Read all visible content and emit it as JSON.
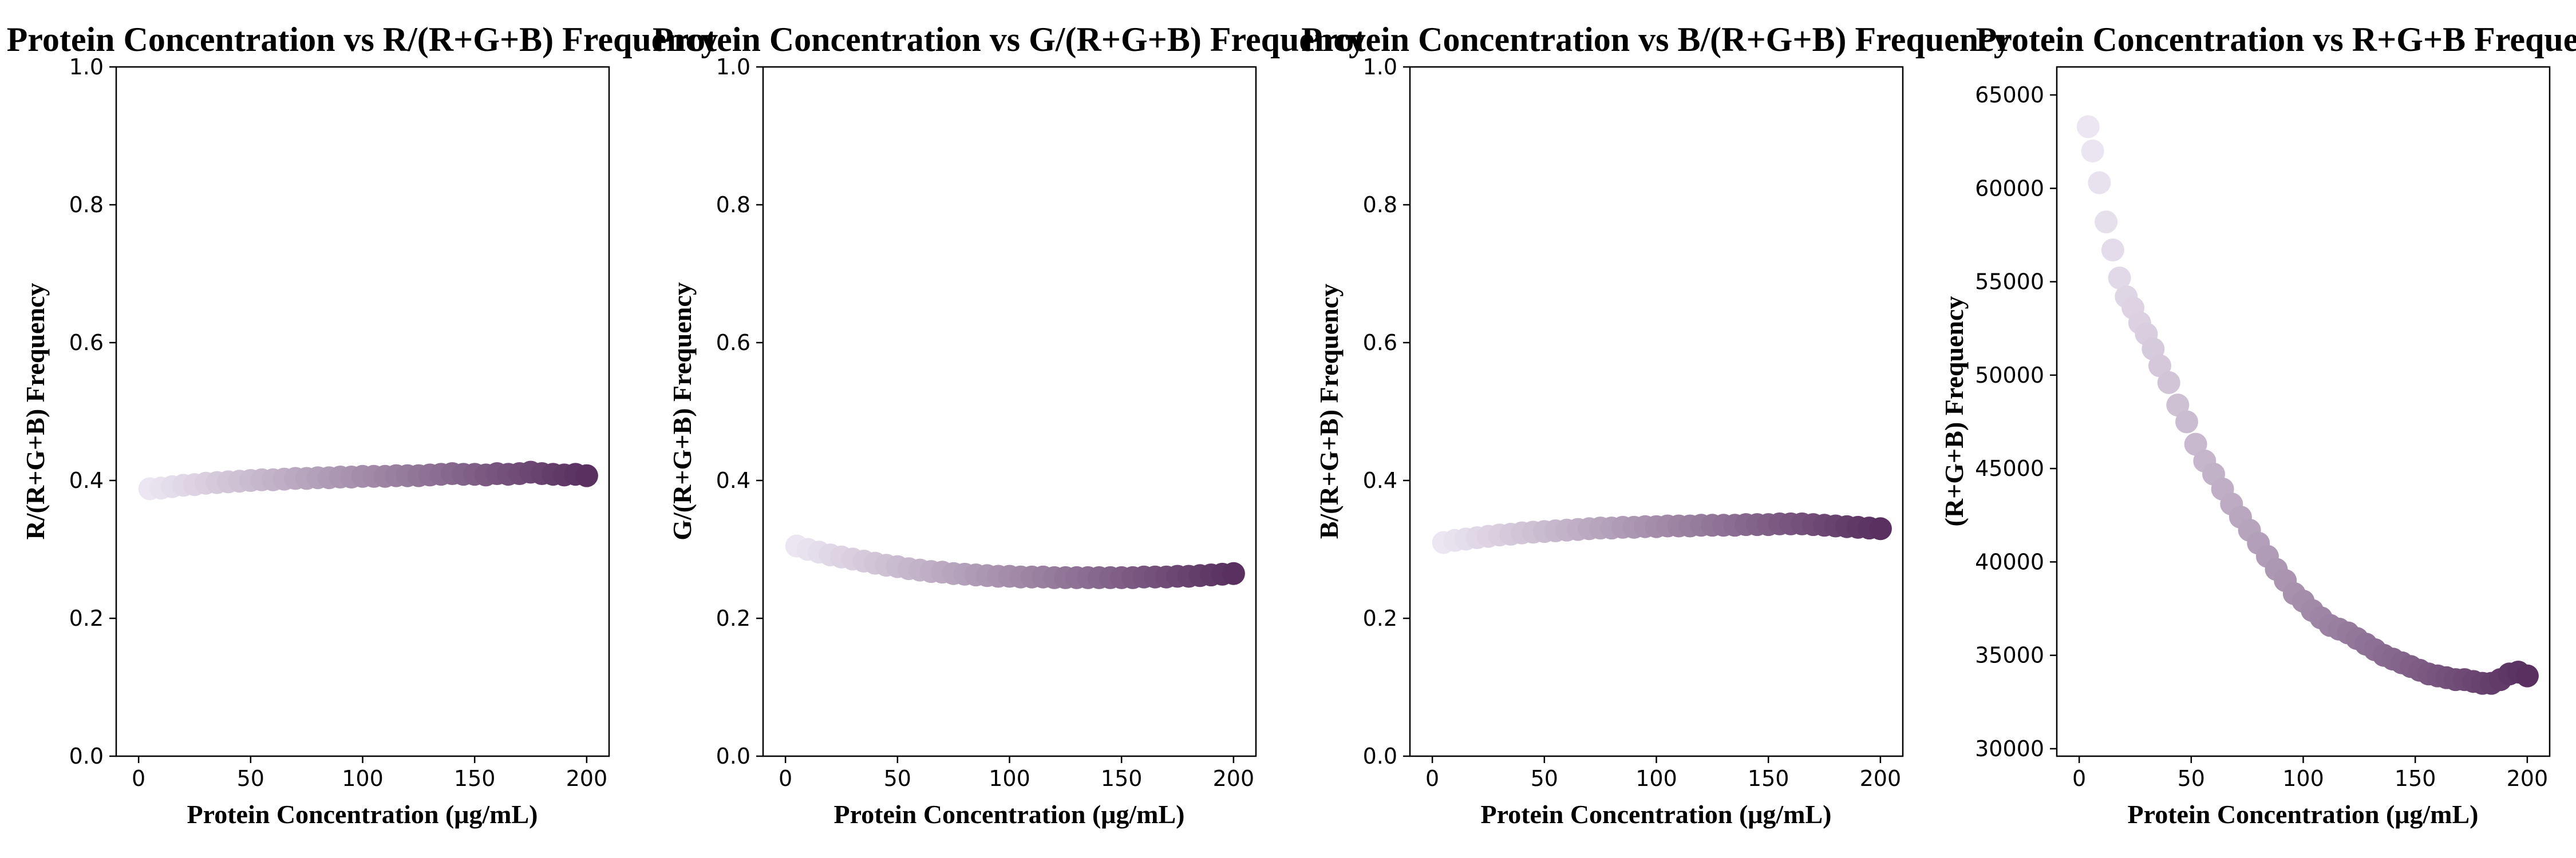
{
  "figure": {
    "colors": {
      "start": "#ece6f2",
      "end": "#593060"
    }
  },
  "chart_data": [
    {
      "type": "scatter",
      "title": "Protein Concentration vs R/(R+G+B) Frequency",
      "xlabel": "Protein Concentration (μg/mL)",
      "ylabel": "R/(R+G+B) Frequency",
      "xlim": [
        -10,
        210
      ],
      "ylim": [
        0.0,
        1.0
      ],
      "xticks": [
        0,
        50,
        100,
        150,
        200
      ],
      "xtick_labels": [
        "0",
        "50",
        "100",
        "150",
        "200"
      ],
      "yticks": [
        0.0,
        0.2,
        0.4,
        0.6,
        0.8,
        1.0
      ],
      "ytick_labels": [
        "0.0",
        "0.2",
        "0.4",
        "0.6",
        "0.8",
        "1.0"
      ],
      "x": [
        5,
        10,
        15,
        20,
        25,
        30,
        35,
        40,
        45,
        50,
        55,
        60,
        65,
        70,
        75,
        80,
        85,
        90,
        95,
        100,
        105,
        110,
        115,
        120,
        125,
        130,
        135,
        140,
        145,
        150,
        155,
        160,
        165,
        170,
        175,
        180,
        185,
        190,
        195,
        200
      ],
      "y": [
        0.388,
        0.389,
        0.391,
        0.393,
        0.394,
        0.396,
        0.397,
        0.398,
        0.399,
        0.4,
        0.401,
        0.401,
        0.402,
        0.403,
        0.403,
        0.404,
        0.404,
        0.405,
        0.405,
        0.406,
        0.406,
        0.406,
        0.407,
        0.407,
        0.407,
        0.408,
        0.409,
        0.41,
        0.409,
        0.409,
        0.408,
        0.41,
        0.409,
        0.41,
        0.412,
        0.41,
        0.409,
        0.408,
        0.409,
        0.407
      ]
    },
    {
      "type": "scatter",
      "title": "Protein Concentration vs G/(R+G+B) Frequency",
      "xlabel": "Protein Concentration (μg/mL)",
      "ylabel": "G/(R+G+B) Frequency",
      "xlim": [
        -10,
        210
      ],
      "ylim": [
        0.0,
        1.0
      ],
      "xticks": [
        0,
        50,
        100,
        150,
        200
      ],
      "xtick_labels": [
        "0",
        "50",
        "100",
        "150",
        "200"
      ],
      "yticks": [
        0.0,
        0.2,
        0.4,
        0.6,
        0.8,
        1.0
      ],
      "ytick_labels": [
        "0.0",
        "0.2",
        "0.4",
        "0.6",
        "0.8",
        "1.0"
      ],
      "x": [
        5,
        10,
        15,
        20,
        25,
        30,
        35,
        40,
        45,
        50,
        55,
        60,
        65,
        70,
        75,
        80,
        85,
        90,
        95,
        100,
        105,
        110,
        115,
        120,
        125,
        130,
        135,
        140,
        145,
        150,
        155,
        160,
        165,
        170,
        175,
        180,
        185,
        190,
        195,
        200
      ],
      "y": [
        0.305,
        0.3,
        0.296,
        0.292,
        0.289,
        0.286,
        0.283,
        0.28,
        0.277,
        0.275,
        0.272,
        0.27,
        0.268,
        0.267,
        0.265,
        0.264,
        0.263,
        0.262,
        0.261,
        0.261,
        0.26,
        0.26,
        0.26,
        0.259,
        0.259,
        0.259,
        0.259,
        0.259,
        0.259,
        0.259,
        0.259,
        0.26,
        0.26,
        0.26,
        0.261,
        0.261,
        0.262,
        0.263,
        0.264,
        0.265
      ]
    },
    {
      "type": "scatter",
      "title": "Protein Concentration vs B/(R+G+B) Frequency",
      "xlabel": "Protein Concentration (μg/mL)",
      "ylabel": "B/(R+G+B) Frequency",
      "xlim": [
        -10,
        210
      ],
      "ylim": [
        0.0,
        1.0
      ],
      "xticks": [
        0,
        50,
        100,
        150,
        200
      ],
      "xtick_labels": [
        "0",
        "50",
        "100",
        "150",
        "200"
      ],
      "yticks": [
        0.0,
        0.2,
        0.4,
        0.6,
        0.8,
        1.0
      ],
      "ytick_labels": [
        "0.0",
        "0.2",
        "0.4",
        "0.6",
        "0.8",
        "1.0"
      ],
      "x": [
        5,
        10,
        15,
        20,
        25,
        30,
        35,
        40,
        45,
        50,
        55,
        60,
        65,
        70,
        75,
        80,
        85,
        90,
        95,
        100,
        105,
        110,
        115,
        120,
        125,
        130,
        135,
        140,
        145,
        150,
        155,
        160,
        165,
        170,
        175,
        180,
        185,
        190,
        195,
        200
      ],
      "y": [
        0.31,
        0.313,
        0.315,
        0.317,
        0.319,
        0.321,
        0.322,
        0.324,
        0.325,
        0.326,
        0.327,
        0.328,
        0.329,
        0.33,
        0.331,
        0.331,
        0.332,
        0.332,
        0.333,
        0.333,
        0.334,
        0.334,
        0.334,
        0.335,
        0.335,
        0.335,
        0.335,
        0.336,
        0.336,
        0.336,
        0.337,
        0.337,
        0.337,
        0.336,
        0.335,
        0.334,
        0.333,
        0.332,
        0.331,
        0.33
      ]
    },
    {
      "type": "scatter",
      "title": "Protein Concentration vs R+G+B Frequency",
      "xlabel": "Protein Concentration (μg/mL)",
      "ylabel": "(R+G+B) Frequency",
      "xlim": [
        -10,
        210
      ],
      "ylim": [
        29600,
        66500
      ],
      "xticks": [
        0,
        50,
        100,
        150,
        200
      ],
      "xtick_labels": [
        "0",
        "50",
        "100",
        "150",
        "200"
      ],
      "yticks": [
        30000,
        35000,
        40000,
        45000,
        50000,
        55000,
        60000,
        65000
      ],
      "ytick_labels": [
        "30000",
        "35000",
        "40000",
        "45000",
        "50000",
        "55000",
        "60000",
        "65000"
      ],
      "x": [
        4,
        6,
        9,
        12,
        15,
        18,
        21,
        24,
        27,
        30,
        33,
        36,
        40,
        44,
        48,
        52,
        56,
        60,
        64,
        68,
        72,
        76,
        80,
        84,
        88,
        92,
        96,
        100,
        104,
        108,
        112,
        116,
        120,
        124,
        128,
        132,
        136,
        140,
        144,
        148,
        152,
        156,
        160,
        164,
        168,
        172,
        176,
        180,
        184,
        188,
        192,
        196,
        200
      ],
      "y": [
        63300,
        62000,
        60300,
        58200,
        56700,
        55200,
        54200,
        53600,
        52800,
        52200,
        51400,
        50500,
        49600,
        48400,
        47500,
        46300,
        45400,
        44700,
        43900,
        43100,
        42400,
        41700,
        41000,
        40300,
        39600,
        39000,
        38300,
        37900,
        37400,
        37000,
        36600,
        36400,
        36200,
        35900,
        35600,
        35300,
        35000,
        34800,
        34600,
        34400,
        34200,
        34000,
        33900,
        33800,
        33700,
        33700,
        33600,
        33500,
        33500,
        33700,
        34000,
        34100,
        33900
      ]
    }
  ]
}
